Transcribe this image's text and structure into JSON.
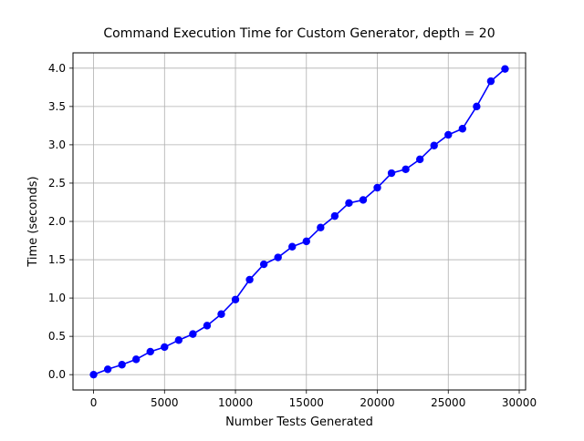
{
  "chart_data": {
    "type": "line",
    "title": "Command Execution Time for Custom Generator, depth = 20",
    "xlabel": "Number Tests Generated",
    "ylabel": "Time (seconds)",
    "xlim": [
      -1450,
      30450
    ],
    "ylim": [
      -0.2,
      4.2
    ],
    "grid": true,
    "x_ticks": [
      0,
      5000,
      10000,
      15000,
      20000,
      25000,
      30000
    ],
    "y_ticks": [
      0.0,
      0.5,
      1.0,
      1.5,
      2.0,
      2.5,
      3.0,
      3.5,
      4.0
    ],
    "x_tick_labels": [
      "0",
      "5000",
      "10000",
      "15000",
      "20000",
      "25000",
      "30000"
    ],
    "y_tick_labels": [
      "0.0",
      "0.5",
      "1.0",
      "1.5",
      "2.0",
      "2.5",
      "3.0",
      "3.5",
      "4.0"
    ],
    "series": [
      {
        "color": "#0000ff",
        "marker": "circle",
        "x": [
          0,
          1000,
          2000,
          3000,
          4000,
          5000,
          6000,
          7000,
          8000,
          9000,
          10000,
          11000,
          12000,
          13000,
          14000,
          15000,
          16000,
          17000,
          18000,
          19000,
          20000,
          21000,
          22000,
          23000,
          24000,
          25000,
          26000,
          27000,
          28000,
          29000
        ],
        "values": [
          0.0,
          0.07,
          0.13,
          0.2,
          0.3,
          0.36,
          0.45,
          0.53,
          0.64,
          0.79,
          0.98,
          1.24,
          1.44,
          1.53,
          1.67,
          1.74,
          1.92,
          2.07,
          2.24,
          2.28,
          2.44,
          2.63,
          2.68,
          2.81,
          2.99,
          3.13,
          3.21,
          3.5,
          3.83,
          3.99
        ]
      }
    ]
  }
}
